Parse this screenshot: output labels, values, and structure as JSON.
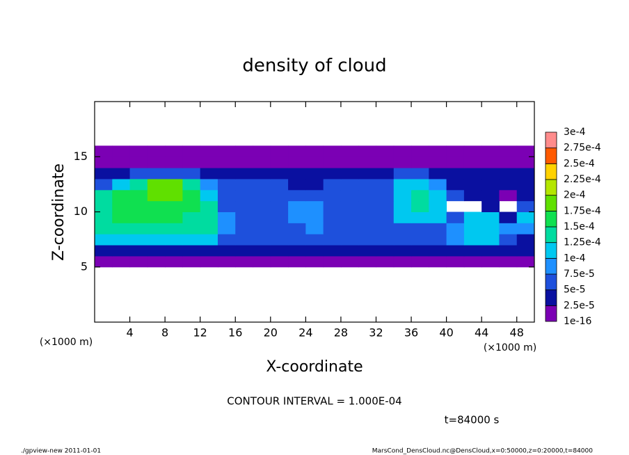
{
  "chart_data": {
    "type": "heatmap",
    "title": "density of cloud",
    "x_label": "X-coordinate",
    "y_label": "Z-coordinate",
    "y_unit_label": "(×1000 m)",
    "x_unit_label": "(×1000 m)",
    "xlim": [
      0,
      50
    ],
    "ylim": [
      0,
      20
    ],
    "xticks": [
      4,
      8,
      12,
      16,
      20,
      24,
      28,
      32,
      36,
      40,
      44,
      48
    ],
    "yticks": [
      5,
      10,
      15
    ],
    "x": [
      1,
      3,
      5,
      7,
      9,
      11,
      13,
      15,
      17,
      19,
      21,
      23,
      25,
      27,
      29,
      31,
      33,
      35,
      37,
      39,
      41,
      43,
      45,
      47,
      49
    ],
    "z": [
      5.5,
      6.5,
      7.5,
      8.5,
      9.5,
      10.5,
      11.5,
      12.5,
      13.5,
      14.5,
      15.5
    ],
    "values": [
      [
        1e-05,
        1e-05,
        1e-05,
        1e-05,
        1e-05,
        1e-05,
        1e-05,
        1e-05,
        1e-05,
        1e-05,
        1e-05,
        1e-05,
        1e-05,
        1e-05,
        1e-05,
        1e-05,
        1e-05,
        1e-05,
        1e-05,
        1e-05,
        1e-05,
        1e-05,
        1e-05,
        1e-05,
        1e-05
      ],
      [
        4e-05,
        4e-05,
        4e-05,
        4e-05,
        4e-05,
        4e-05,
        3e-05,
        3e-05,
        3e-05,
        3e-05,
        3e-05,
        3e-05,
        3e-05,
        3e-05,
        3e-05,
        3e-05,
        3e-05,
        3e-05,
        3e-05,
        3e-05,
        3e-05,
        3e-05,
        3e-05,
        3e-05,
        3e-05
      ],
      [
        0.00011,
        0.00011,
        0.00011,
        0.00011,
        0.00011,
        0.00011,
        0.0001,
        6e-05,
        6e-05,
        6e-05,
        6e-05,
        6e-05,
        7e-05,
        6e-05,
        6e-05,
        6e-05,
        6e-05,
        6e-05,
        5e-05,
        6e-05,
        8e-05,
        0.00011,
        0.00011,
        6e-05,
        4e-05
      ],
      [
        0.00013,
        0.00013,
        0.00013,
        0.00013,
        0.00013,
        0.00013,
        0.00013,
        8e-05,
        6e-05,
        6e-05,
        6e-05,
        7e-05,
        8e-05,
        7e-05,
        6e-05,
        6e-05,
        6e-05,
        5e-05,
        5e-05,
        6e-05,
        9e-05,
        0.00011,
        0.00012,
        8e-05,
        9e-05
      ],
      [
        0.00014,
        0.00015,
        0.00015,
        0.00015,
        0.00015,
        0.00014,
        0.00013,
        8e-05,
        6e-05,
        6e-05,
        7e-05,
        9e-05,
        8e-05,
        7e-05,
        6e-05,
        6e-05,
        7e-05,
        0.00011,
        0.00012,
        0.00012,
        7e-05,
        0.00011,
        0.00011,
        4e-05,
        0.0001
      ],
      [
        0.00014,
        0.00015,
        0.00016,
        0.00016,
        0.00016,
        0.00015,
        0.00013,
        7e-05,
        6e-05,
        6e-05,
        7e-05,
        9e-05,
        8e-05,
        7e-05,
        6e-05,
        6e-05,
        6e-05,
        0.00012,
        0.00013,
        0.00012,
        null,
        null,
        3e-05,
        null,
        5e-05
      ],
      [
        0.00013,
        0.00015,
        0.00017,
        0.00018,
        0.00018,
        0.00016,
        0.00012,
        6e-05,
        6e-05,
        6e-05,
        7e-05,
        7e-05,
        6e-05,
        6e-05,
        6e-05,
        6e-05,
        6e-05,
        0.00011,
        0.00013,
        0.00012,
        5e-05,
        3e-05,
        3e-05,
        2e-05,
        4e-05
      ],
      [
        6e-05,
        0.0001,
        0.00014,
        0.00019,
        0.00018,
        0.00014,
        8e-05,
        5e-05,
        5e-05,
        5e-05,
        5e-05,
        4e-05,
        4e-05,
        5e-05,
        5e-05,
        6e-05,
        5e-05,
        0.0001,
        0.00012,
        9e-05,
        4e-05,
        4e-05,
        3e-05,
        3e-05,
        3e-05
      ],
      [
        3e-05,
        4e-05,
        5e-05,
        6e-05,
        6e-05,
        5e-05,
        4e-05,
        4e-05,
        4e-05,
        4e-05,
        4e-05,
        4e-05,
        3e-05,
        4e-05,
        4e-05,
        4e-05,
        4e-05,
        5e-05,
        5e-05,
        4e-05,
        3e-05,
        3e-05,
        3e-05,
        3e-05,
        3e-05
      ],
      [
        2e-05,
        2e-05,
        2e-05,
        2e-05,
        2e-05,
        2e-05,
        2e-05,
        2e-05,
        2e-05,
        2e-05,
        2e-05,
        2e-05,
        2e-05,
        2e-05,
        2e-05,
        2e-05,
        2e-05,
        2e-05,
        2e-05,
        2e-05,
        2e-05,
        2e-05,
        2e-05,
        2e-05,
        2e-05
      ],
      [
        1e-05,
        1e-05,
        1e-05,
        1e-05,
        1e-05,
        1e-05,
        1e-05,
        1e-05,
        1e-05,
        1e-05,
        1e-05,
        1e-05,
        1e-05,
        1e-05,
        1e-05,
        1e-05,
        1e-05,
        1e-05,
        1e-05,
        1e-05,
        1e-05,
        1e-05,
        1e-05,
        1e-05,
        1e-05
      ]
    ],
    "levels": [
      {
        "value": 1e-16,
        "label": "1e-16"
      },
      {
        "value": 2.5e-05,
        "label": "2.5e-5"
      },
      {
        "value": 5e-05,
        "label": "5e-5"
      },
      {
        "value": 7.5e-05,
        "label": "7.5e-5"
      },
      {
        "value": 0.0001,
        "label": "1e-4"
      },
      {
        "value": 0.000125,
        "label": "1.25e-4"
      },
      {
        "value": 0.00015,
        "label": "1.5e-4"
      },
      {
        "value": 0.000175,
        "label": "1.75e-4"
      },
      {
        "value": 0.0002,
        "label": "2e-4"
      },
      {
        "value": 0.000225,
        "label": "2.25e-4"
      },
      {
        "value": 0.00025,
        "label": "2.5e-4"
      },
      {
        "value": 0.000275,
        "label": "2.75e-4"
      },
      {
        "value": 0.0003,
        "label": "3e-4"
      }
    ],
    "colors": [
      "#7b00b4",
      "#0a10a0",
      "#1e50dc",
      "#1e90ff",
      "#00c8f0",
      "#00dca0",
      "#10e050",
      "#60e000",
      "#b4e600",
      "#ffd200",
      "#ff5a00",
      "#ff8c8c"
    ],
    "annotations": [
      "CONTOUR INTERVAL = 1.000E-04",
      "t=84000 s"
    ],
    "footer": [
      "./gpview-new  2011-01-01",
      "MarsCond_DensCloud.nc@DensCloud,x=0:50000,z=0:20000,t=84000"
    ]
  }
}
